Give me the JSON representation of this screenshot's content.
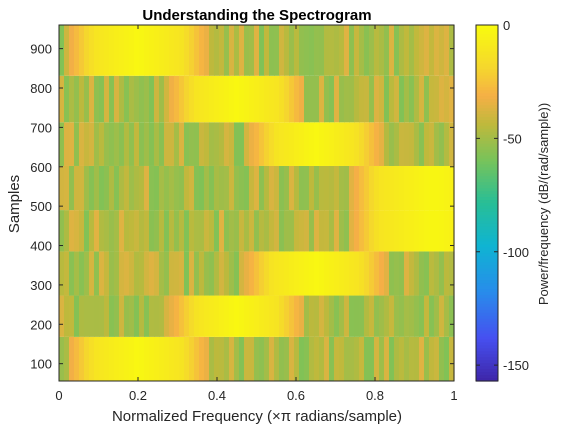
{
  "chart_data": {
    "type": "heatmap",
    "title": "Understanding the Spectrogram",
    "xlabel_prefix": "Normalized Frequency (",
    "xlabel_symbol": "×π",
    "xlabel_suffix": " radians/sample)",
    "ylabel": "Samples",
    "colorbar_label": "Power/frequency (dB/(rad/sample))",
    "x_ticks": [
      "0",
      "0.2",
      "0.4",
      "0.6",
      "0.8",
      "1"
    ],
    "x_tick_values": [
      0,
      0.2,
      0.4,
      0.6,
      0.8,
      1
    ],
    "y_ticks": [
      "100",
      "200",
      "300",
      "400",
      "500",
      "600",
      "700",
      "800",
      "900"
    ],
    "y_tick_values": [
      100,
      200,
      300,
      400,
      500,
      600,
      700,
      800,
      900
    ],
    "colorbar_ticks": [
      "0",
      "-50",
      "-100",
      "-150"
    ],
    "colorbar_tick_values": [
      0,
      -50,
      -100,
      -150
    ],
    "xlim": [
      0,
      1
    ],
    "ylim": [
      56,
      960
    ],
    "clim": [
      -157,
      0
    ],
    "colormap": "parula",
    "rows": [
      {
        "t_start": 56,
        "t_end": 168,
        "peak_freq": 0.2,
        "bandwidth": 0.22
      },
      {
        "t_start": 168,
        "t_end": 273,
        "peak_freq": 0.45,
        "bandwidth": 0.2
      },
      {
        "t_start": 273,
        "t_end": 385,
        "peak_freq": 0.65,
        "bandwidth": 0.22
      },
      {
        "t_start": 385,
        "t_end": 490,
        "peak_freq": 0.95,
        "bandwidth": 0.28
      },
      {
        "t_start": 490,
        "t_end": 602,
        "peak_freq": 0.95,
        "bandwidth": 0.28
      },
      {
        "t_start": 602,
        "t_end": 713,
        "peak_freq": 0.65,
        "bandwidth": 0.2
      },
      {
        "t_start": 713,
        "t_end": 831,
        "peak_freq": 0.45,
        "bandwidth": 0.21
      },
      {
        "t_start": 831,
        "t_end": 960,
        "peak_freq": 0.2,
        "bandwidth": 0.22
      }
    ],
    "grid": false,
    "legend": "none",
    "colorbar": "right"
  }
}
